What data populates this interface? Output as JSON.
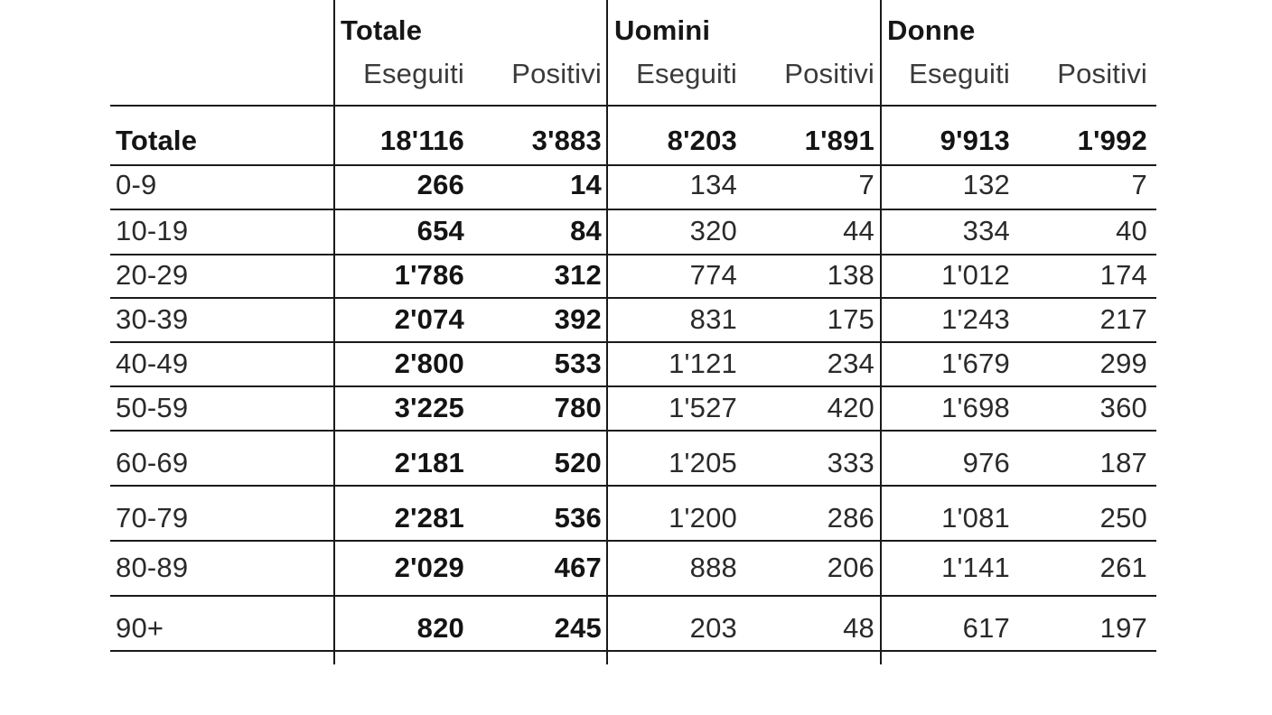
{
  "table": {
    "groups": [
      "Totale",
      "Uomini",
      "Donne"
    ],
    "subheaders": [
      "Eseguiti",
      "Positivi",
      "Eseguiti",
      "Positivi",
      "Eseguiti",
      "Positivi"
    ],
    "rows": [
      {
        "label": "Totale",
        "values": [
          "18'116",
          "3'883",
          "8'203",
          "1'891",
          "9'913",
          "1'992"
        ]
      },
      {
        "label": "0-9",
        "values": [
          "266",
          "14",
          "134",
          "7",
          "132",
          "7"
        ]
      },
      {
        "label": "10-19",
        "values": [
          "654",
          "84",
          "320",
          "44",
          "334",
          "40"
        ]
      },
      {
        "label": "20-29",
        "values": [
          "1'786",
          "312",
          "774",
          "138",
          "1'012",
          "174"
        ]
      },
      {
        "label": "30-39",
        "values": [
          "2'074",
          "392",
          "831",
          "175",
          "1'243",
          "217"
        ]
      },
      {
        "label": "40-49",
        "values": [
          "2'800",
          "533",
          "1'121",
          "234",
          "1'679",
          "299"
        ]
      },
      {
        "label": "50-59",
        "values": [
          "3'225",
          "780",
          "1'527",
          "420",
          "1'698",
          "360"
        ]
      },
      {
        "label": "60-69",
        "values": [
          "2'181",
          "520",
          "1'205",
          "333",
          "976",
          "187"
        ]
      },
      {
        "label": "70-79",
        "values": [
          "2'281",
          "536",
          "1'200",
          "286",
          "1'081",
          "250"
        ]
      },
      {
        "label": "80-89",
        "values": [
          "2'029",
          "467",
          "888",
          "206",
          "1'141",
          "261"
        ]
      },
      {
        "label": "90+",
        "values": [
          "820",
          "245",
          "203",
          "48",
          "617",
          "197"
        ]
      }
    ]
  }
}
